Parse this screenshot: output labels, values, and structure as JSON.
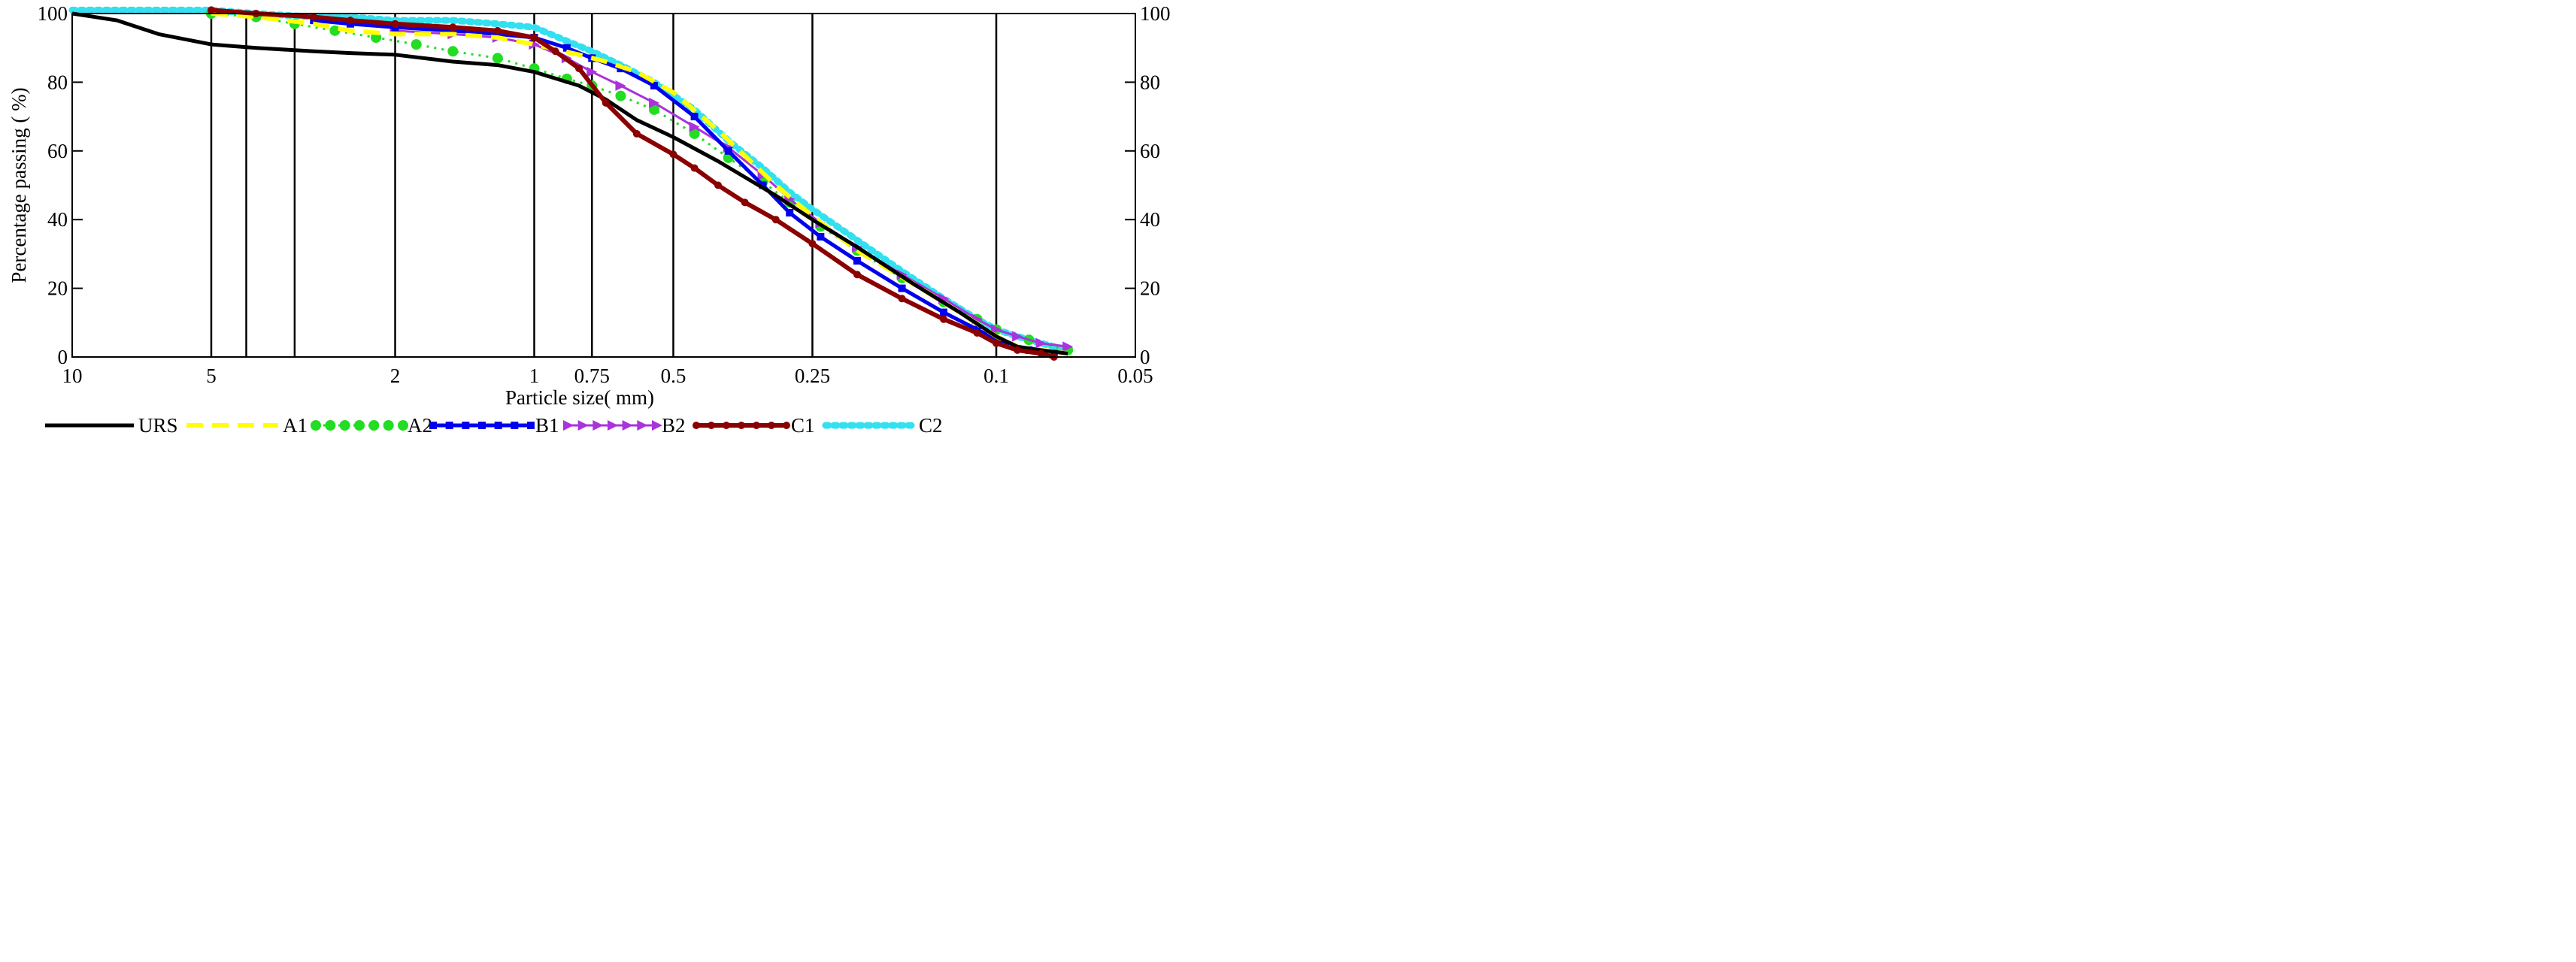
{
  "chart_data": {
    "type": "line",
    "title": "",
    "xlabel": "Particle size( mm)",
    "ylabel": "Percentage passing ( %)",
    "x_scale": "log",
    "x_reversed": true,
    "xlim": [
      10,
      0.05
    ],
    "ylim": [
      0,
      100
    ],
    "x_ticks": [
      10,
      5,
      2,
      1,
      0.75,
      0.5,
      0.25,
      0.1,
      0.05
    ],
    "x_tick_labels": [
      "10",
      "5",
      "2",
      "1",
      "0.75",
      "0.5",
      "0.25",
      "0.1",
      "0.05"
    ],
    "y_ticks": [
      0,
      20,
      40,
      60,
      80,
      100
    ],
    "y_tick_labels": [
      "0",
      "20",
      "40",
      "60",
      "80",
      "100"
    ],
    "right_y_tick_labels": [
      "0",
      "20",
      "40",
      "60",
      "80",
      "100"
    ],
    "vertical_gridlines": [
      5,
      4.2,
      3.3,
      2,
      1,
      0.75,
      0.5,
      0.25,
      0.1
    ],
    "legend_position": "bottom",
    "series": [
      {
        "name": "URS",
        "color": "#000000",
        "style": "solid",
        "x": [
          10,
          8,
          6.5,
          5,
          4,
          3,
          2.5,
          2,
          1.5,
          1.2,
          1,
          0.8,
          0.7,
          0.6,
          0.5,
          0.4,
          0.3,
          0.25,
          0.2,
          0.15,
          0.12,
          0.1,
          0.09,
          0.08,
          0.07
        ],
        "y": [
          100,
          98,
          94,
          91,
          90,
          89,
          88.5,
          88,
          86,
          85,
          83,
          79,
          75,
          69,
          64,
          57,
          47,
          40,
          32,
          21,
          13,
          6,
          3,
          2,
          1
        ]
      },
      {
        "name": "A1",
        "color": "#ffff00",
        "style": "dashed",
        "x": [
          5,
          4,
          3,
          2.5,
          2,
          1.5,
          1.2,
          1,
          0.8,
          0.7,
          0.6,
          0.5,
          0.4,
          0.3,
          0.25,
          0.2,
          0.15,
          0.12,
          0.1,
          0.09,
          0.08,
          0.07
        ],
        "y": [
          100,
          99,
          97,
          95,
          94,
          94,
          93,
          91,
          88,
          86,
          83,
          77,
          66,
          50,
          41,
          31,
          21,
          13,
          6,
          3,
          2,
          1
        ]
      },
      {
        "name": "A2",
        "color": "#22dd22",
        "style": "dotted-marker",
        "x": [
          5,
          4,
          3.3,
          2.7,
          2.2,
          1.8,
          1.5,
          1.2,
          1,
          0.85,
          0.75,
          0.65,
          0.55,
          0.45,
          0.38,
          0.32,
          0.28,
          0.24,
          0.2,
          0.16,
          0.13,
          0.11,
          0.1,
          0.085,
          0.07
        ],
        "y": [
          100,
          99,
          97,
          95,
          93,
          91,
          89,
          87,
          84,
          81,
          79,
          76,
          72,
          65,
          58,
          51,
          45,
          38,
          31,
          23,
          16,
          11,
          8,
          5,
          2
        ]
      },
      {
        "name": "B1",
        "color": "#0000ee",
        "style": "solid-marker",
        "x": [
          3,
          2.5,
          2,
          1.5,
          1.2,
          1,
          0.85,
          0.75,
          0.65,
          0.55,
          0.45,
          0.38,
          0.32,
          0.28,
          0.24,
          0.2,
          0.16,
          0.13,
          0.11,
          0.1,
          0.085,
          0.075
        ],
        "y": [
          98,
          97,
          96,
          95,
          94,
          93,
          90,
          87,
          84,
          79,
          70,
          60,
          50,
          42,
          35,
          28,
          20,
          13,
          8,
          5,
          2,
          1
        ]
      },
      {
        "name": "B2",
        "color": "#aa33dd",
        "style": "triangle-marker",
        "x": [
          2,
          1.5,
          1.2,
          1,
          0.85,
          0.75,
          0.65,
          0.55,
          0.45,
          0.38,
          0.32,
          0.28,
          0.24,
          0.2,
          0.16,
          0.13,
          0.11,
          0.1,
          0.09,
          0.08,
          0.07
        ],
        "y": [
          95,
          94,
          93,
          91,
          87,
          83,
          79,
          74,
          67,
          61,
          53,
          46,
          39,
          32,
          24,
          17,
          11,
          8,
          6,
          4,
          3
        ]
      },
      {
        "name": "C1",
        "color": "#8b0000",
        "style": "solid-marker",
        "x": [
          5,
          4,
          3,
          2.5,
          2,
          1.5,
          1.2,
          1,
          0.9,
          0.8,
          0.7,
          0.6,
          0.5,
          0.45,
          0.4,
          0.35,
          0.3,
          0.25,
          0.2,
          0.16,
          0.13,
          0.11,
          0.1,
          0.09,
          0.08,
          0.075
        ],
        "y": [
          101,
          100,
          99,
          98,
          97,
          96,
          95,
          93,
          89,
          84,
          74,
          65,
          59,
          55,
          50,
          45,
          40,
          33,
          24,
          17,
          11,
          7,
          4,
          2,
          1,
          0
        ]
      },
      {
        "name": "C2",
        "color": "#33e0f0",
        "style": "dotted",
        "x": [
          10,
          7,
          5,
          4,
          3,
          2.5,
          2,
          1.5,
          1.2,
          1,
          0.85,
          0.75,
          0.65,
          0.55,
          0.45,
          0.38,
          0.32,
          0.28,
          0.25,
          0.2,
          0.16,
          0.13,
          0.11,
          0.1,
          0.09,
          0.08,
          0.07
        ],
        "y": [
          101,
          101,
          101,
          100,
          99,
          99,
          98,
          98,
          97,
          96,
          92,
          89,
          85,
          80,
          72,
          63,
          55,
          48,
          43,
          34,
          25,
          17,
          11,
          8,
          6,
          4,
          2
        ]
      }
    ]
  }
}
